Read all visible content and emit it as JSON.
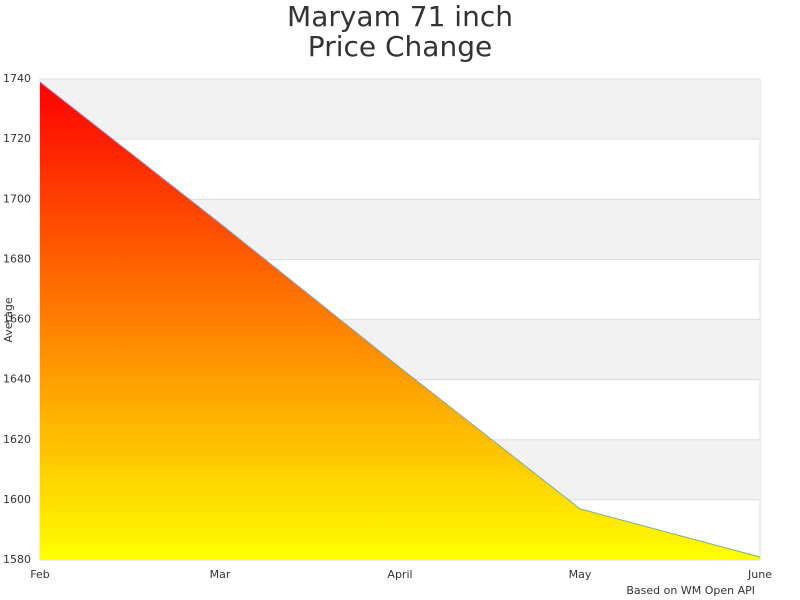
{
  "chart_data": {
    "type": "area",
    "title": "Maryam 71 inch",
    "subtitle": "Price Change",
    "y_label": "Average",
    "source": "Based on WM Open API",
    "categories": [
      "Feb",
      "Mar",
      "April",
      "May",
      "June"
    ],
    "values": [
      1739,
      1692,
      1644,
      1597,
      1581
    ],
    "color": "#6fa8dc",
    "fill_gradient": [
      "#ff0000",
      "#ffff00"
    ],
    "ylim": [
      1580,
      1740
    ],
    "yticks": [
      1580,
      1600,
      1620,
      1640,
      1660,
      1680,
      1700,
      1720,
      1740
    ],
    "grid": true,
    "band_color": "#f2f2f2"
  }
}
